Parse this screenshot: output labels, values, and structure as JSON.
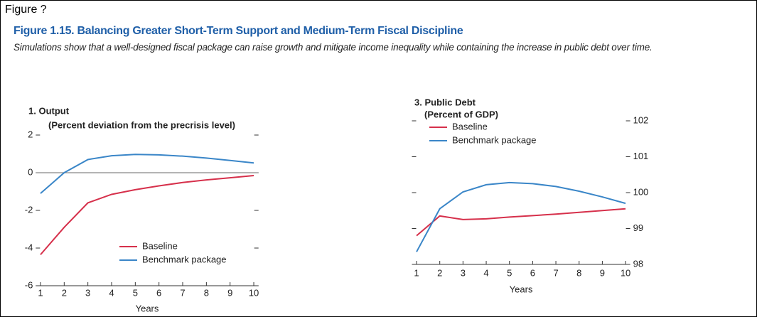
{
  "header": {
    "label": "Figure ?",
    "title": "Figure 1.15. Balancing Greater Short-Term Support and Medium-Term Fiscal Discipline",
    "subtitle": "Simulations show that a well-designed fiscal package can raise growth and mitigate income inequality while containing the increase in public debt over time."
  },
  "chart_data": [
    {
      "type": "line",
      "title": "1. Output",
      "subtitle": "(Percent deviation from the precrisis level)",
      "xlabel": "Years",
      "x": [
        1,
        2,
        3,
        4,
        5,
        6,
        7,
        8,
        9,
        10
      ],
      "xlim": [
        0.8,
        10.2
      ],
      "xticks": [
        1,
        2,
        3,
        4,
        5,
        6,
        7,
        8,
        9,
        10
      ],
      "ylim": [
        -6,
        2.5
      ],
      "yticks": [
        -6,
        -4,
        -2,
        0,
        2
      ],
      "y_label_side": "left",
      "zero_line": true,
      "legend": "lower center",
      "series": [
        {
          "name": "Baseline",
          "color": "#d6304b",
          "values": [
            -4.35,
            -2.9,
            -1.6,
            -1.15,
            -0.9,
            -0.7,
            -0.52,
            -0.38,
            -0.27,
            -0.15
          ]
        },
        {
          "name": "Benchmark package",
          "color": "#3a86c8",
          "values": [
            -1.1,
            0.0,
            0.7,
            0.9,
            0.97,
            0.95,
            0.88,
            0.78,
            0.65,
            0.52
          ]
        }
      ]
    },
    {
      "type": "line",
      "title": "3. Public Debt",
      "subtitle": "(Percent of GDP)",
      "xlabel": "Years",
      "x": [
        1,
        2,
        3,
        4,
        5,
        6,
        7,
        8,
        9,
        10
      ],
      "xlim": [
        0.8,
        10.2
      ],
      "xticks": [
        1,
        2,
        3,
        4,
        5,
        6,
        7,
        8,
        9,
        10
      ],
      "ylim": [
        98,
        102.4
      ],
      "yticks": [
        98,
        99,
        100,
        101,
        102
      ],
      "y_label_side": "right",
      "zero_line": false,
      "legend": "upper left",
      "series": [
        {
          "name": "Baseline",
          "color": "#d6304b",
          "values": [
            98.8,
            99.35,
            99.25,
            99.27,
            99.32,
            99.36,
            99.4,
            99.45,
            99.5,
            99.55
          ]
        },
        {
          "name": "Benchmark package",
          "color": "#3a86c8",
          "values": [
            98.35,
            99.55,
            100.02,
            100.22,
            100.28,
            100.25,
            100.17,
            100.04,
            99.88,
            99.7
          ]
        }
      ]
    }
  ]
}
